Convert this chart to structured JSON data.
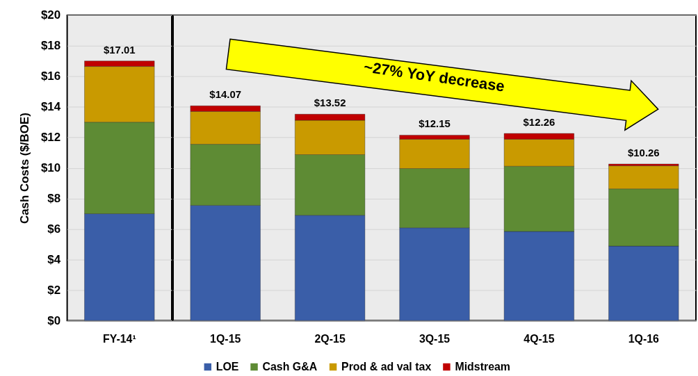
{
  "chart_data": [
    {
      "type": "bar",
      "stacked": true,
      "categories": [
        "FY-14¹"
      ],
      "ylabel": "Cash Costs ($/BOE)",
      "series": [
        {
          "name": "LOE",
          "color": "#3a5ea8",
          "values": [
            7.0
          ]
        },
        {
          "name": "Cash G&A",
          "color": "#5e8b34",
          "values": [
            6.0
          ]
        },
        {
          "name": "Prod & ad val tax",
          "color": "#c99a00",
          "values": [
            3.65
          ]
        },
        {
          "name": "Midstream",
          "color": "#c00000",
          "values": [
            0.36
          ]
        }
      ],
      "totals": [
        "$17.01"
      ],
      "ylim": [
        0,
        20
      ],
      "yticks": [
        {
          "value": 0,
          "label": "$0"
        },
        {
          "value": 2,
          "label": "$2"
        },
        {
          "value": 4,
          "label": "$4"
        },
        {
          "value": 6,
          "label": "$6"
        },
        {
          "value": 8,
          "label": "$8"
        },
        {
          "value": 10,
          "label": "$10"
        },
        {
          "value": 12,
          "label": "$12"
        },
        {
          "value": 14,
          "label": "$14"
        },
        {
          "value": 16,
          "label": "$16"
        },
        {
          "value": 18,
          "label": "$18"
        },
        {
          "value": 20,
          "label": "$20"
        }
      ],
      "grid": "y",
      "legend": "bottom"
    },
    {
      "type": "bar",
      "stacked": true,
      "categories": [
        "1Q-15",
        "2Q-15",
        "3Q-15",
        "4Q-15",
        "1Q-16"
      ],
      "series": [
        {
          "name": "LOE",
          "color": "#3a5ea8",
          "values": [
            7.55,
            6.9,
            6.08,
            5.84,
            4.88
          ]
        },
        {
          "name": "Cash G&A",
          "color": "#5e8b34",
          "values": [
            4.0,
            3.97,
            3.88,
            4.27,
            3.75
          ]
        },
        {
          "name": "Prod & ad val tax",
          "color": "#c99a00",
          "values": [
            2.15,
            2.25,
            1.92,
            1.77,
            1.51
          ]
        },
        {
          "name": "Midstream",
          "color": "#c00000",
          "values": [
            0.37,
            0.4,
            0.27,
            0.38,
            0.12
          ]
        }
      ],
      "totals": [
        "$14.07",
        "$13.52",
        "$12.15",
        "$12.26",
        "$10.26"
      ],
      "annotations": [
        "~27% YoY decrease"
      ],
      "ylim": [
        0,
        20
      ],
      "yticks": [
        0,
        2,
        4,
        6,
        8,
        10,
        12,
        14,
        16,
        18,
        20
      ],
      "grid": "y",
      "legend": "bottom",
      "tick_labels": "x"
    }
  ]
}
